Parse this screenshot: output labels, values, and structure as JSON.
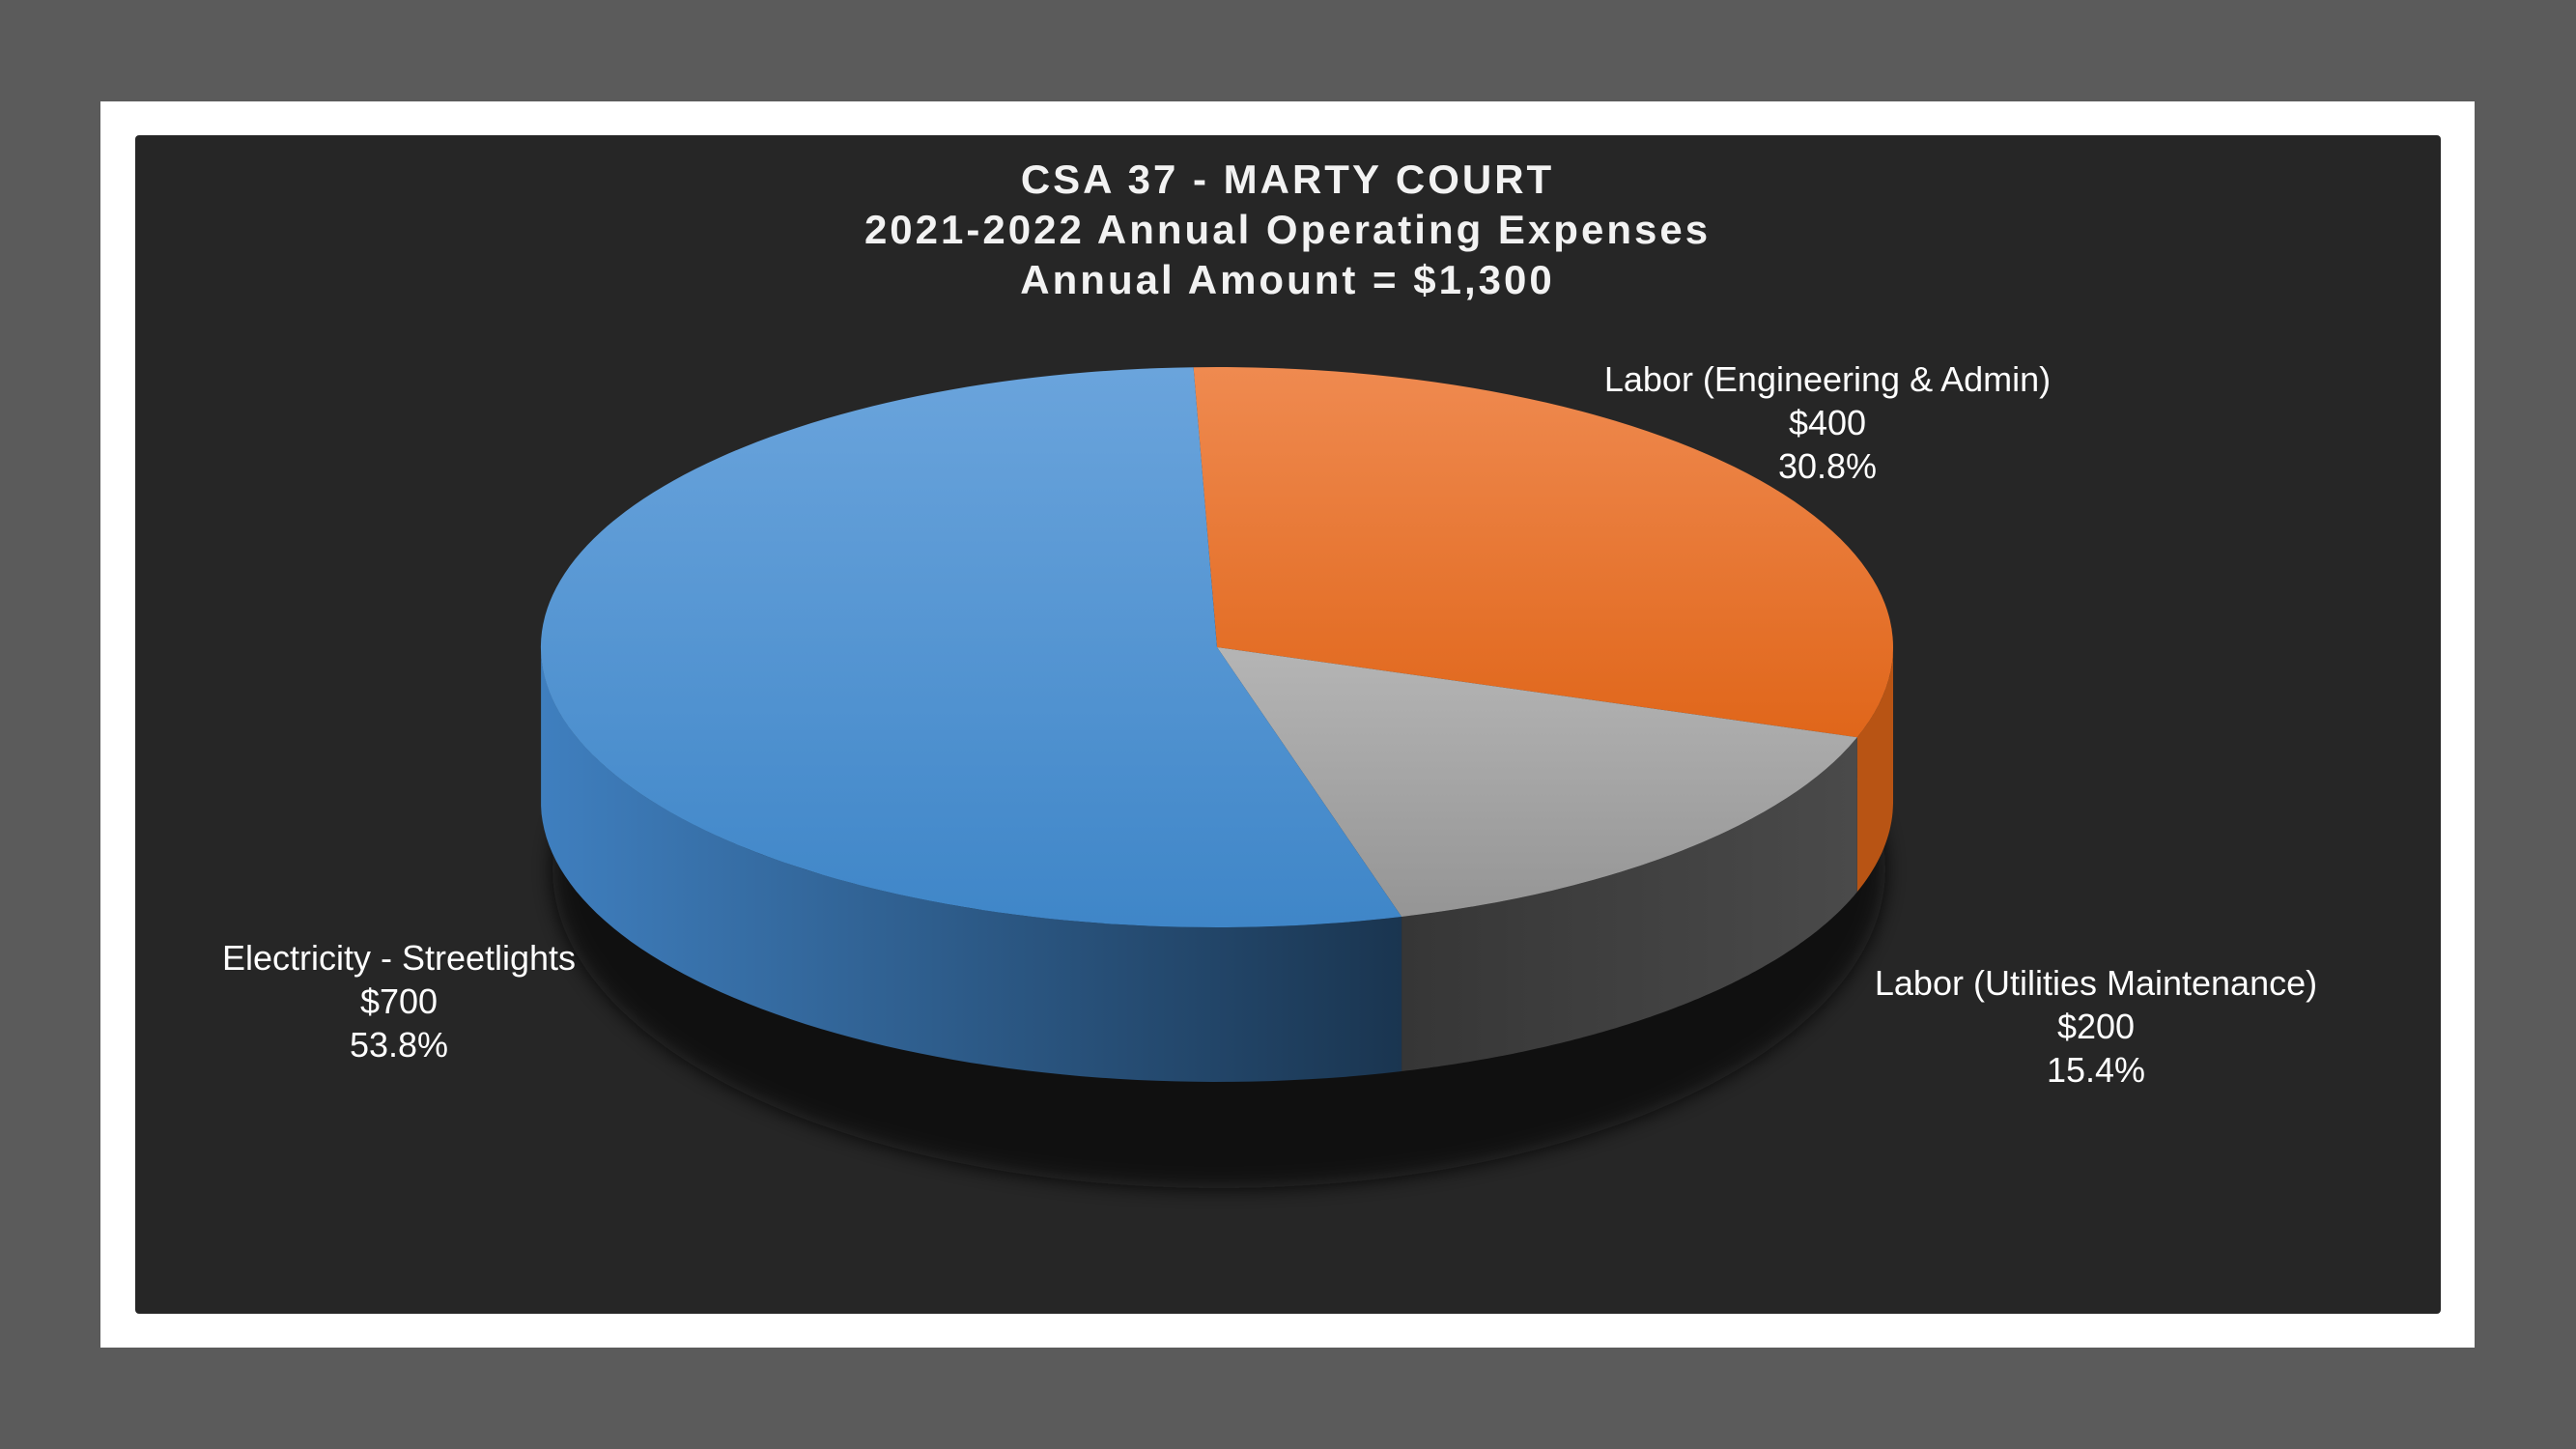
{
  "chart_data": {
    "type": "pie",
    "title_lines": [
      "CSA 37 - MARTY COURT",
      "2021-2022 Annual Operating Expenses",
      "Annual Amount = $1,300"
    ],
    "slices": [
      {
        "name": "Labor (Engineering & Admin)",
        "value": 400,
        "value_label": "$400",
        "percent_label": "30.8%",
        "color": "#ed7d31"
      },
      {
        "name": "Labor (Utilities Maintenance)",
        "value": 200,
        "value_label": "$200",
        "percent_label": "15.4%",
        "color": "#a5a5a5"
      },
      {
        "name": "Electricity - Streetlights",
        "value": 700,
        "value_label": "$700",
        "percent_label": "53.8%",
        "color": "#5b9bd5"
      }
    ],
    "style": "3d"
  }
}
